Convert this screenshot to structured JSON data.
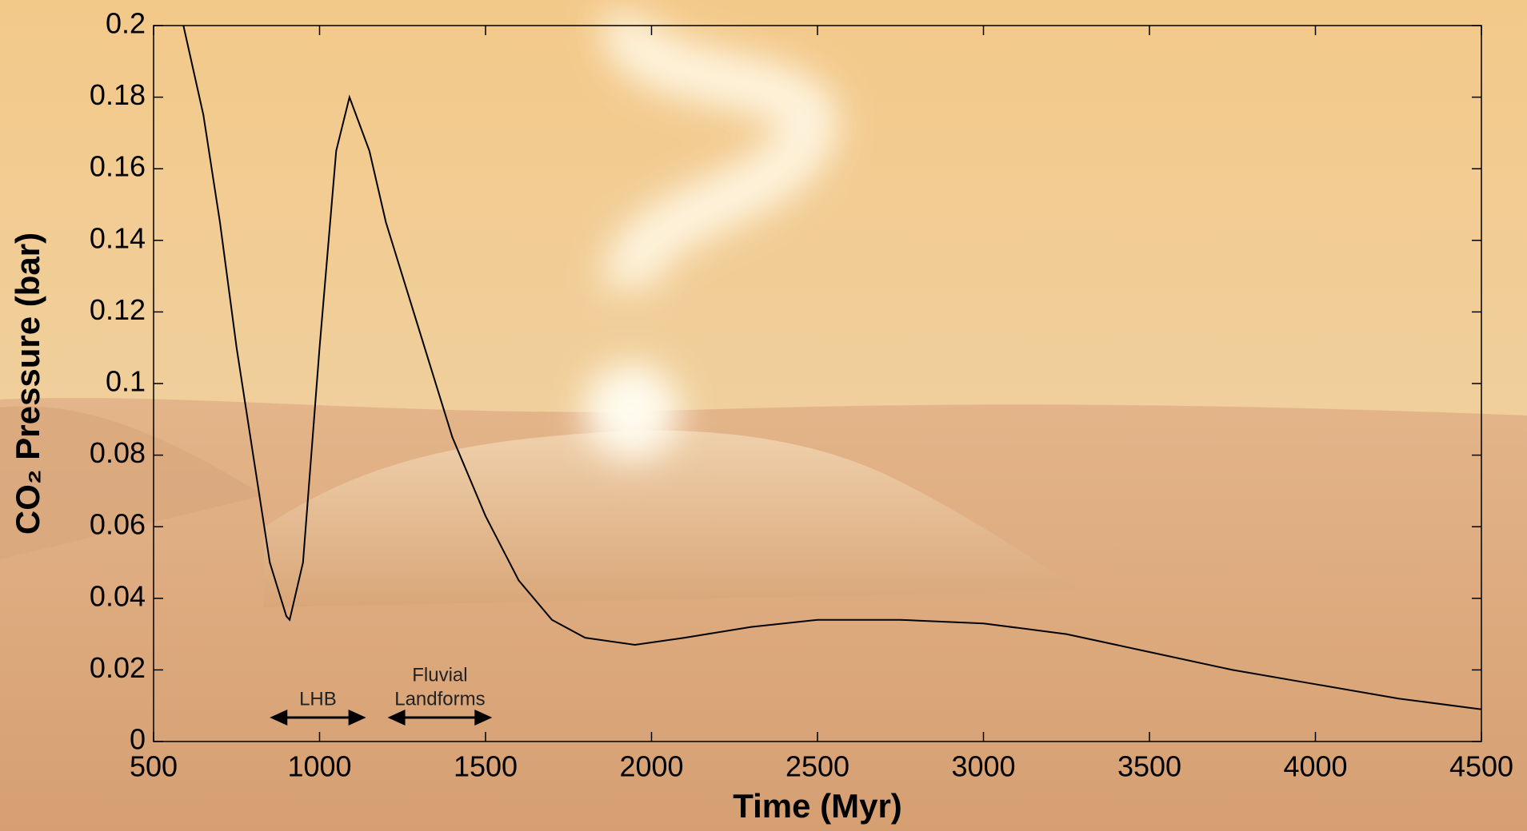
{
  "chart_data": {
    "type": "line",
    "x_label": "Time (Myr)",
    "y_label": "CO₂ Pressure (bar)",
    "xlim": [
      500,
      4500
    ],
    "ylim": [
      0,
      0.2
    ],
    "xticks": [
      500,
      1000,
      1500,
      2000,
      2500,
      3000,
      3500,
      4000,
      4500
    ],
    "yticks": [
      0,
      0.02,
      0.04,
      0.06,
      0.08,
      0.1,
      0.12,
      0.14,
      0.16,
      0.18,
      0.2
    ],
    "series": [
      {
        "color": "#000000",
        "x": [
          590,
          650,
          700,
          750,
          800,
          850,
          900,
          910,
          950,
          1000,
          1050,
          1090,
          1150,
          1200,
          1300,
          1400,
          1500,
          1600,
          1700,
          1800,
          1950,
          2100,
          2300,
          2500,
          2750,
          3000,
          3250,
          3500,
          3750,
          4000,
          4250,
          4500
        ],
        "values": [
          0.2,
          0.175,
          0.145,
          0.11,
          0.08,
          0.05,
          0.035,
          0.034,
          0.05,
          0.11,
          0.165,
          0.18,
          0.165,
          0.145,
          0.115,
          0.085,
          0.063,
          0.045,
          0.034,
          0.029,
          0.027,
          0.029,
          0.032,
          0.034,
          0.034,
          0.033,
          0.03,
          0.025,
          0.02,
          0.016,
          0.012,
          0.009
        ]
      }
    ],
    "annotations": [
      {
        "lines": [
          "LHB"
        ],
        "x": [
          850,
          1140
        ]
      },
      {
        "lines": [
          "Fluvial",
          "Landforms"
        ],
        "x": [
          1205,
          1520
        ]
      }
    ]
  }
}
